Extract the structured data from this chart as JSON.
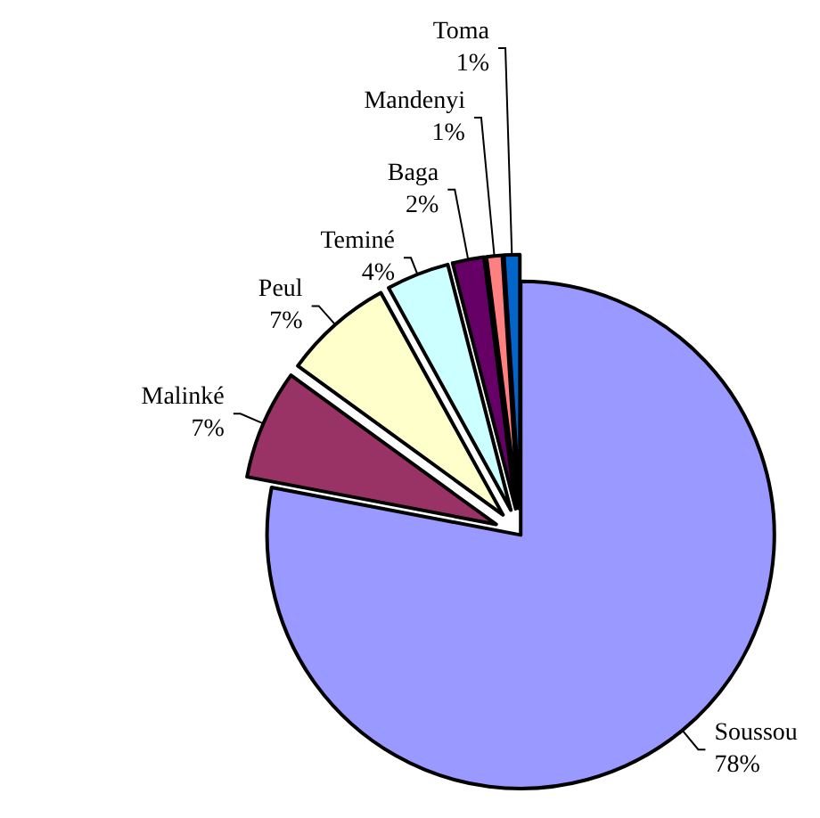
{
  "chart_data": {
    "type": "pie",
    "categories": [
      "Soussou",
      "Malinké",
      "Peul",
      "Teminé",
      "Baga",
      "Mandenyi",
      "Toma"
    ],
    "values": [
      78,
      7,
      7,
      4,
      2,
      1,
      1
    ],
    "value_labels": [
      "78%",
      "7%",
      "7%",
      "4%",
      "2%",
      "1%",
      "1%"
    ],
    "colors": [
      "#9999ff",
      "#993366",
      "#ffffcc",
      "#ccffff",
      "#660066",
      "#ff8080",
      "#0066cc"
    ]
  }
}
